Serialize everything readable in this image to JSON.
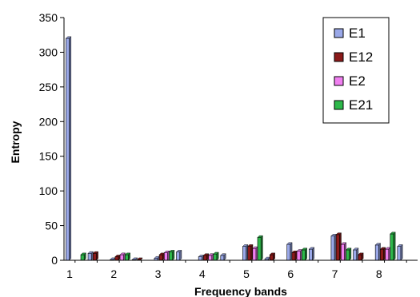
{
  "chart_data": {
    "type": "bar",
    "title": "",
    "xlabel": "Frequency bands",
    "ylabel": "Entropy",
    "ylim": [
      0,
      350
    ],
    "yticks": [
      0,
      50,
      100,
      150,
      200,
      250,
      300,
      350
    ],
    "categories": [
      "1",
      "",
      "2",
      "",
      "3",
      "",
      "4",
      "",
      "5",
      "",
      "6",
      "",
      "7",
      "",
      "8",
      ""
    ],
    "series": [
      {
        "name": "E1",
        "color": "#9aa8e8",
        "values": [
          320,
          10,
          1,
          1,
          3,
          12,
          5,
          7,
          20,
          2,
          23,
          16,
          35,
          15,
          22,
          20
        ]
      },
      {
        "name": "E12",
        "color": "#8b1a1a",
        "values": [
          0,
          10,
          5,
          1,
          8,
          0,
          7,
          0,
          20,
          8,
          11,
          0,
          37,
          8,
          16,
          0
        ]
      },
      {
        "name": "E2",
        "color": "#f07ff0",
        "values": [
          0,
          0,
          8,
          0,
          11,
          0,
          7,
          0,
          17,
          0,
          13,
          0,
          23,
          0,
          16,
          0
        ]
      },
      {
        "name": "E21",
        "color": "#2db84a",
        "values": [
          8,
          0,
          8,
          0,
          12,
          0,
          9,
          0,
          33,
          0,
          15,
          0,
          15,
          0,
          38,
          0
        ]
      }
    ],
    "grid": false,
    "legend_position": "top-right"
  }
}
